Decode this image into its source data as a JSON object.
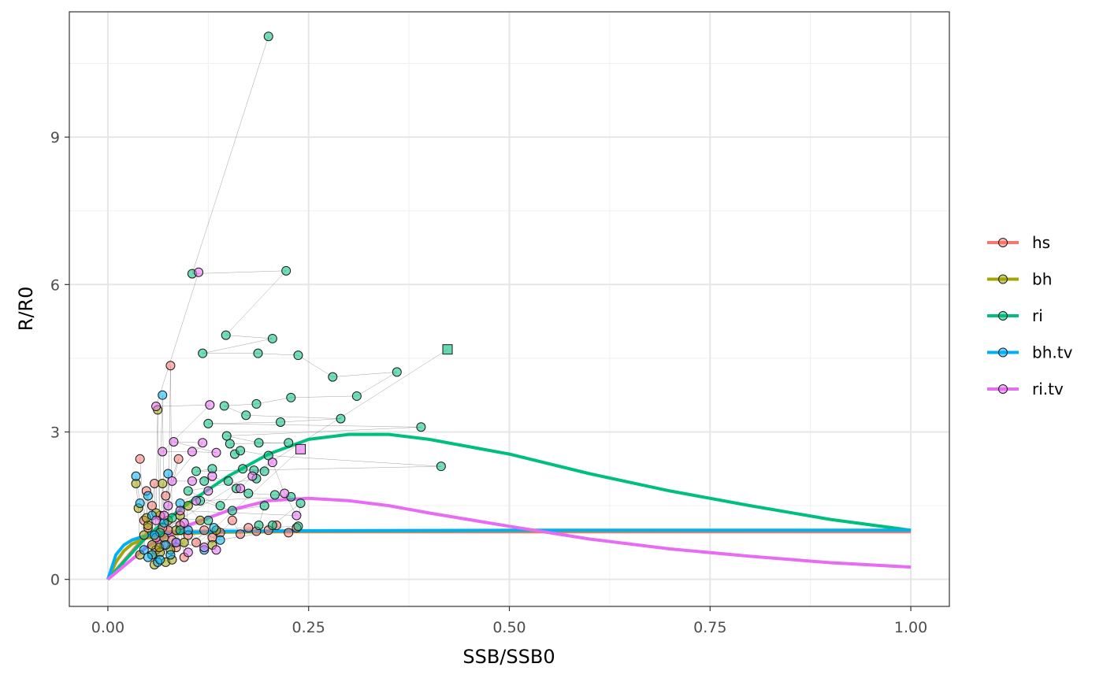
{
  "chart_data": {
    "type": "scatter",
    "xlabel": "SSB/SSB0",
    "ylabel": "R/R0",
    "xlim": [
      -0.048,
      1.048
    ],
    "ylim": [
      -0.55,
      11.55
    ],
    "x_ticks": [
      0.0,
      0.25,
      0.5,
      0.75,
      1.0
    ],
    "x_tick_labels": [
      "0.00",
      "0.25",
      "0.50",
      "0.75",
      "1.00"
    ],
    "y_ticks": [
      0,
      3,
      6,
      9
    ],
    "y_tick_labels": [
      "0",
      "3",
      "6",
      "9"
    ],
    "grid": true,
    "legend_position": "right",
    "series": [
      {
        "name": "hs",
        "color": "#F8766D",
        "curve": [
          [
            0,
            0
          ],
          [
            0.05,
            0.95
          ],
          [
            0.06,
            0.97
          ],
          [
            1.0,
            0.97
          ]
        ],
        "points": [
          [
            0.04,
            2.45
          ],
          [
            0.045,
            1.2
          ],
          [
            0.048,
            1.8
          ],
          [
            0.05,
            1.05
          ],
          [
            0.055,
            1.5
          ],
          [
            0.058,
            1.95
          ],
          [
            0.06,
            0.85
          ],
          [
            0.065,
            1.3
          ],
          [
            0.07,
            0.7
          ],
          [
            0.075,
            1.0
          ],
          [
            0.078,
            4.35
          ],
          [
            0.08,
            0.8
          ],
          [
            0.085,
            0.65
          ],
          [
            0.09,
            1.1
          ],
          [
            0.095,
            0.45
          ],
          [
            0.1,
            0.9
          ],
          [
            0.11,
            0.75
          ],
          [
            0.12,
            1.0
          ],
          [
            0.13,
            0.85
          ],
          [
            0.14,
            0.95
          ],
          [
            0.155,
            1.2
          ],
          [
            0.165,
            0.92
          ],
          [
            0.175,
            1.05
          ],
          [
            0.185,
            0.98
          ],
          [
            0.2,
            1.0
          ],
          [
            0.21,
            1.1
          ],
          [
            0.225,
            0.95
          ],
          [
            0.235,
            1.05
          ],
          [
            0.06,
            0.6
          ],
          [
            0.068,
            1.05
          ],
          [
            0.088,
            2.45
          ],
          [
            0.072,
            1.7
          ]
        ],
        "last_point": null
      },
      {
        "name": "bh",
        "color": "#A3A500",
        "curve": [
          [
            0,
            0
          ],
          [
            0.01,
            0.35
          ],
          [
            0.02,
            0.58
          ],
          [
            0.03,
            0.72
          ],
          [
            0.045,
            0.83
          ],
          [
            0.06,
            0.88
          ],
          [
            0.08,
            0.92
          ],
          [
            0.1,
            0.94
          ],
          [
            0.15,
            0.96
          ],
          [
            0.25,
            0.98
          ],
          [
            0.5,
            0.99
          ],
          [
            1.0,
            1.0
          ]
        ],
        "points": [
          [
            0.035,
            1.95
          ],
          [
            0.038,
            1.45
          ],
          [
            0.04,
            0.5
          ],
          [
            0.045,
            0.9
          ],
          [
            0.05,
            1.1
          ],
          [
            0.055,
            0.7
          ],
          [
            0.058,
            0.3
          ],
          [
            0.06,
            1.35
          ],
          [
            0.062,
            3.45
          ],
          [
            0.065,
            0.55
          ],
          [
            0.068,
            1.95
          ],
          [
            0.07,
            0.85
          ],
          [
            0.072,
            0.35
          ],
          [
            0.075,
            1.2
          ],
          [
            0.078,
            0.6
          ],
          [
            0.08,
            0.4
          ],
          [
            0.085,
            1.0
          ],
          [
            0.09,
            1.3
          ],
          [
            0.095,
            0.75
          ],
          [
            0.1,
            1.5
          ],
          [
            0.115,
            1.2
          ],
          [
            0.13,
            0.7
          ],
          [
            0.135,
            1.0
          ],
          [
            0.055,
            0.5
          ],
          [
            0.048,
            1.25
          ],
          [
            0.064,
            0.65
          ]
        ],
        "last_point": null
      },
      {
        "name": "ri",
        "color": "#00BF7D",
        "curve": [
          [
            0,
            0
          ],
          [
            0.05,
            0.9
          ],
          [
            0.1,
            1.55
          ],
          [
            0.15,
            2.1
          ],
          [
            0.2,
            2.55
          ],
          [
            0.25,
            2.85
          ],
          [
            0.3,
            2.95
          ],
          [
            0.35,
            2.95
          ],
          [
            0.4,
            2.85
          ],
          [
            0.5,
            2.55
          ],
          [
            0.6,
            2.15
          ],
          [
            0.7,
            1.8
          ],
          [
            0.8,
            1.5
          ],
          [
            0.9,
            1.22
          ],
          [
            1.0,
            1.0
          ]
        ],
        "points": [
          [
            0.2,
            11.05
          ],
          [
            0.105,
            6.22
          ],
          [
            0.222,
            6.28
          ],
          [
            0.147,
            4.97
          ],
          [
            0.205,
            4.9
          ],
          [
            0.118,
            4.6
          ],
          [
            0.187,
            4.6
          ],
          [
            0.237,
            4.56
          ],
          [
            0.28,
            4.12
          ],
          [
            0.36,
            4.22
          ],
          [
            0.31,
            3.73
          ],
          [
            0.228,
            3.7
          ],
          [
            0.185,
            3.57
          ],
          [
            0.145,
            3.53
          ],
          [
            0.172,
            3.34
          ],
          [
            0.29,
            3.27
          ],
          [
            0.215,
            3.2
          ],
          [
            0.125,
            3.17
          ],
          [
            0.39,
            3.1
          ],
          [
            0.148,
            2.92
          ],
          [
            0.188,
            2.78
          ],
          [
            0.225,
            2.78
          ],
          [
            0.152,
            2.76
          ],
          [
            0.158,
            2.55
          ],
          [
            0.165,
            2.62
          ],
          [
            0.2,
            2.52
          ],
          [
            0.415,
            2.3
          ],
          [
            0.11,
            2.2
          ],
          [
            0.13,
            2.25
          ],
          [
            0.12,
            2.0
          ],
          [
            0.15,
            2.0
          ],
          [
            0.168,
            2.25
          ],
          [
            0.182,
            2.22
          ],
          [
            0.195,
            2.2
          ],
          [
            0.185,
            2.05
          ],
          [
            0.1,
            1.8
          ],
          [
            0.14,
            1.5
          ],
          [
            0.16,
            1.85
          ],
          [
            0.175,
            1.75
          ],
          [
            0.208,
            1.72
          ],
          [
            0.228,
            1.68
          ],
          [
            0.115,
            1.6
          ],
          [
            0.155,
            1.4
          ],
          [
            0.195,
            1.5
          ],
          [
            0.188,
            1.1
          ],
          [
            0.205,
            1.1
          ],
          [
            0.24,
            1.55
          ],
          [
            0.237,
            1.08
          ],
          [
            0.09,
            1.0
          ],
          [
            0.125,
            1.2
          ],
          [
            0.08,
            1.25
          ],
          [
            0.065,
            0.95
          ]
        ],
        "last_point": [
          0.423,
          4.68
        ]
      },
      {
        "name": "bh.tv",
        "color": "#00B0F6",
        "curve": [
          [
            0,
            0
          ],
          [
            0.01,
            0.5
          ],
          [
            0.02,
            0.7
          ],
          [
            0.03,
            0.8
          ],
          [
            0.045,
            0.88
          ],
          [
            0.06,
            0.92
          ],
          [
            0.08,
            0.95
          ],
          [
            0.1,
            0.96
          ],
          [
            0.15,
            0.98
          ],
          [
            0.25,
            0.99
          ],
          [
            0.5,
            1.0
          ],
          [
            1.0,
            1.0
          ]
        ],
        "points": [
          [
            0.035,
            2.1
          ],
          [
            0.04,
            1.55
          ],
          [
            0.045,
            0.6
          ],
          [
            0.05,
            1.7
          ],
          [
            0.055,
            0.5
          ],
          [
            0.058,
            0.9
          ],
          [
            0.062,
            0.35
          ],
          [
            0.068,
            3.75
          ],
          [
            0.07,
            1.15
          ],
          [
            0.075,
            2.15
          ],
          [
            0.078,
            0.5
          ],
          [
            0.085,
            0.75
          ],
          [
            0.09,
            1.55
          ],
          [
            0.1,
            1.0
          ],
          [
            0.12,
            0.6
          ],
          [
            0.132,
            1.05
          ],
          [
            0.14,
            0.8
          ],
          [
            0.055,
            1.3
          ],
          [
            0.065,
            0.4
          ],
          [
            0.072,
            0.7
          ],
          [
            0.05,
            0.45
          ]
        ],
        "last_point": null
      },
      {
        "name": "ri.tv",
        "color": "#E76BF3",
        "curve": [
          [
            0,
            0
          ],
          [
            0.05,
            0.68
          ],
          [
            0.1,
            1.1
          ],
          [
            0.15,
            1.4
          ],
          [
            0.2,
            1.6
          ],
          [
            0.25,
            1.65
          ],
          [
            0.3,
            1.6
          ],
          [
            0.35,
            1.5
          ],
          [
            0.4,
            1.35
          ],
          [
            0.5,
            1.08
          ],
          [
            0.6,
            0.82
          ],
          [
            0.7,
            0.62
          ],
          [
            0.8,
            0.47
          ],
          [
            0.9,
            0.34
          ],
          [
            1.0,
            0.25
          ]
        ],
        "points": [
          [
            0.113,
            6.25
          ],
          [
            0.06,
            3.52
          ],
          [
            0.127,
            3.55
          ],
          [
            0.068,
            2.6
          ],
          [
            0.105,
            2.6
          ],
          [
            0.135,
            2.58
          ],
          [
            0.082,
            2.8
          ],
          [
            0.118,
            2.78
          ],
          [
            0.08,
            2.0
          ],
          [
            0.105,
            2.0
          ],
          [
            0.13,
            2.1
          ],
          [
            0.165,
            1.85
          ],
          [
            0.18,
            2.1
          ],
          [
            0.205,
            2.38
          ],
          [
            0.22,
            1.75
          ],
          [
            0.235,
            1.3
          ],
          [
            0.09,
            1.4
          ],
          [
            0.11,
            1.6
          ],
          [
            0.125,
            1.8
          ],
          [
            0.075,
            1.5
          ],
          [
            0.06,
            1.2
          ],
          [
            0.095,
            1.15
          ],
          [
            0.12,
            0.65
          ],
          [
            0.135,
            0.6
          ],
          [
            0.085,
            0.75
          ],
          [
            0.07,
            1.3
          ],
          [
            0.1,
            0.55
          ]
        ],
        "last_point": [
          0.24,
          2.65
        ]
      }
    ]
  }
}
